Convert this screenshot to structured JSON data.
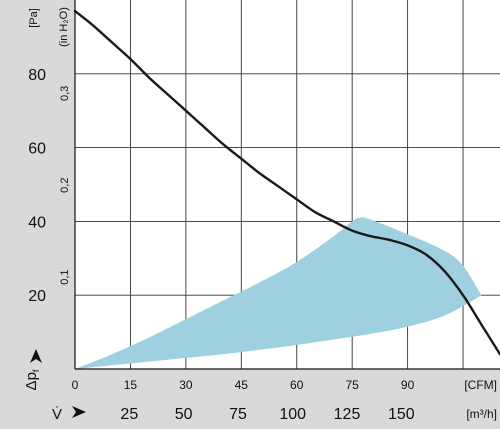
{
  "chart_data": {
    "type": "line",
    "x_unit": "[CFM]",
    "x_ticks": [
      0,
      15,
      30,
      45,
      60,
      75,
      90
    ],
    "x_range": [
      0,
      115
    ],
    "y_unit": "[Pa]",
    "y_ticks": [
      20,
      40,
      60,
      80
    ],
    "y_range": [
      0,
      100
    ],
    "y2_unit": "(in H₂O)",
    "y2_ticks": [
      "0,1",
      "0,2",
      "0,3"
    ],
    "y2_values_pa": [
      24.9,
      49.8,
      74.7
    ],
    "y_axis_symbol": "Δp",
    "y_axis_symbol_sub": "f",
    "x2_symbol": "V̇",
    "x2_unit": "[m³/h]",
    "x2_ticks": [
      "25",
      "50",
      "75",
      "100",
      "125",
      "150"
    ],
    "x2_values_cfm": [
      14.7,
      29.4,
      44.1,
      58.9,
      73.6,
      88.3
    ],
    "grid": true,
    "colors": {
      "curve": "#1a1a1a",
      "band": "#9fd0e0",
      "side_panel": "#d9d9d9",
      "grid": "#333333"
    },
    "series": [
      {
        "x": [
          0,
          5,
          10,
          15,
          20,
          25,
          30,
          35,
          40,
          45,
          50,
          55,
          60,
          65,
          70,
          75,
          80,
          85,
          90,
          95,
          100,
          105,
          110,
          115
        ],
        "y": [
          97,
          93,
          88.5,
          84,
          79,
          74.5,
          70,
          65.5,
          61,
          57,
          53,
          49.5,
          46,
          42.5,
          40,
          37.5,
          36,
          35,
          33.5,
          31,
          26.5,
          20,
          12,
          4
        ]
      }
    ],
    "operating_band": {
      "upper": {
        "x": [
          0,
          10,
          20,
          30,
          40,
          50,
          60,
          70,
          75,
          77,
          80,
          90,
          100,
          105,
          110
        ],
        "y": [
          0,
          4,
          8.5,
          13.5,
          18.5,
          23.5,
          29,
          36,
          40,
          41,
          40.5,
          36.5,
          32,
          28,
          20
        ]
      },
      "lower": {
        "x": [
          110,
          100,
          90,
          80,
          70,
          60,
          50,
          40,
          30,
          20,
          10,
          0
        ],
        "y": [
          20,
          14.5,
          11.5,
          9.5,
          8,
          6.5,
          5.2,
          4,
          3,
          2,
          1,
          0
        ]
      }
    }
  }
}
